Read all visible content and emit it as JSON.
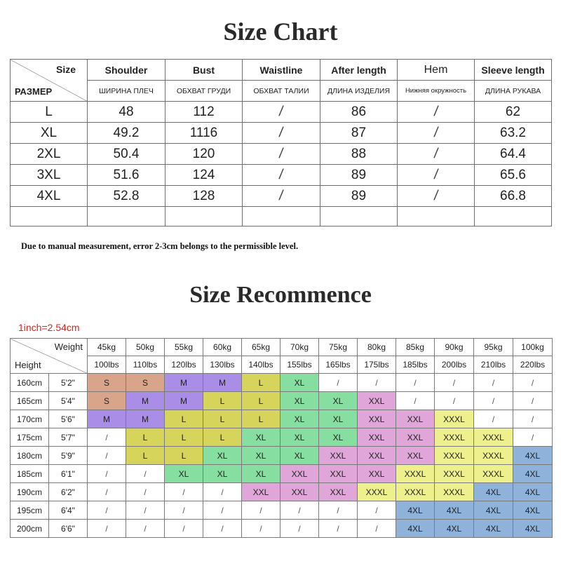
{
  "titles": {
    "size_chart": "Size Chart",
    "recommend": "Size Recommence"
  },
  "note": "Due to manual measurement, error 2-3cm belongs to the permissible level.",
  "unit_note": "1inch=2.54cm",
  "size_chart": {
    "corner_top": "Size",
    "corner_bottom": "РАЗМЕР",
    "headers": [
      "Shoulder",
      "Bust",
      "Waistline",
      "After length",
      "Hem",
      "Sleeve length"
    ],
    "headers_ru": [
      "ШИРИНА ПЛЕЧ",
      "ОБХВАТ ГРУДИ",
      "ОБХВАТ ТАЛИИ",
      "ДЛИНА ИЗДЕЛИЯ",
      "Нижняя окружность",
      "ДЛИНА РУКАВА"
    ],
    "rows": [
      [
        "L",
        "48",
        "112",
        "/",
        "86",
        "/",
        "62"
      ],
      [
        "XL",
        "49.2",
        "1116",
        "/",
        "87",
        "/",
        "63.2"
      ],
      [
        "2XL",
        "50.4",
        "120",
        "/",
        "88",
        "/",
        "64.4"
      ],
      [
        "3XL",
        "51.6",
        "124",
        "/",
        "89",
        "/",
        "65.6"
      ],
      [
        "4XL",
        "52.8",
        "128",
        "/",
        "89",
        "/",
        "66.8"
      ]
    ]
  },
  "recommend": {
    "corner_weight": "Weight",
    "corner_height": "Height",
    "weights_kg": [
      "45kg",
      "50kg",
      "55kg",
      "60kg",
      "65kg",
      "70kg",
      "75kg",
      "80kg",
      "85kg",
      "90kg",
      "95kg",
      "100kg"
    ],
    "weights_lbs": [
      "100lbs",
      "110lbs",
      "120lbs",
      "130lbs",
      "140lbs",
      "155lbs",
      "165lbs",
      "175lbs",
      "185lbs",
      "200lbs",
      "210lbs",
      "220lbs"
    ],
    "rows": [
      {
        "cm": "160cm",
        "ft": "5'2\"",
        "sizes": [
          "S",
          "S",
          "M",
          "M",
          "L",
          "XL",
          "/",
          "/",
          "/",
          "/",
          "/",
          "/"
        ]
      },
      {
        "cm": "165cm",
        "ft": "5'4\"",
        "sizes": [
          "S",
          "M",
          "M",
          "L",
          "L",
          "XL",
          "XL",
          "XXL",
          "/",
          "/",
          "/",
          "/"
        ]
      },
      {
        "cm": "170cm",
        "ft": "5'6\"",
        "sizes": [
          "M",
          "M",
          "L",
          "L",
          "L",
          "XL",
          "XL",
          "XXL",
          "XXL",
          "XXXL",
          "/",
          "/"
        ]
      },
      {
        "cm": "175cm",
        "ft": "5'7\"",
        "sizes": [
          "/",
          "L",
          "L",
          "L",
          "XL",
          "XL",
          "XL",
          "XXL",
          "XXL",
          "XXXL",
          "XXXL",
          "/"
        ]
      },
      {
        "cm": "180cm",
        "ft": "5'9\"",
        "sizes": [
          "/",
          "L",
          "L",
          "XL",
          "XL",
          "XL",
          "XXL",
          "XXL",
          "XXL",
          "XXXL",
          "XXXL",
          "4XL"
        ]
      },
      {
        "cm": "185cm",
        "ft": "6'1\"",
        "sizes": [
          "/",
          "/",
          "XL",
          "XL",
          "XL",
          "XXL",
          "XXL",
          "XXL",
          "XXXL",
          "XXXL",
          "XXXL",
          "4XL"
        ]
      },
      {
        "cm": "190cm",
        "ft": "6'2\"",
        "sizes": [
          "/",
          "/",
          "/",
          "/",
          "XXL",
          "XXL",
          "XXL",
          "XXXL",
          "XXXL",
          "XXXL",
          "4XL",
          "4XL"
        ]
      },
      {
        "cm": "195cm",
        "ft": "6'4\"",
        "sizes": [
          "/",
          "/",
          "/",
          "/",
          "/",
          "/",
          "/",
          "/",
          "4XL",
          "4XL",
          "4XL",
          "4XL"
        ]
      },
      {
        "cm": "200cm",
        "ft": "6'6\"",
        "sizes": [
          "/",
          "/",
          "/",
          "/",
          "/",
          "/",
          "/",
          "/",
          "4XL",
          "4XL",
          "4XL",
          "4XL"
        ]
      }
    ]
  },
  "colors": {
    "S": "#d8a58b",
    "M": "#a98de6",
    "L": "#d6d45a",
    "XL": "#86dfa0",
    "XXL": "#e0a6d9",
    "XXXL": "#eef08e",
    "4XL": "#8fb2da"
  }
}
